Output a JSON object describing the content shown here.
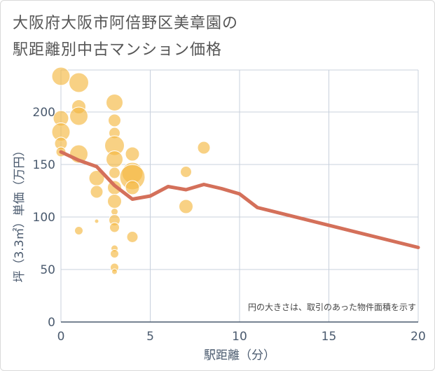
{
  "title": {
    "line1": "大阪府大阪市阿倍野区美章園の",
    "line2": "駅距離別中古マンション価格"
  },
  "note": "円の大きさは、取引のあった物件面積を示す",
  "colors": {
    "bubble": "#f5b942",
    "line": "#d4705a",
    "grid": "#c8d0dc",
    "axis": "#4a5a6e"
  },
  "chart_data": {
    "type": "scatter",
    "xlabel": "駅距離（分）",
    "ylabel": "坪（3.3㎡）単価（万円）",
    "xlim": [
      0,
      20
    ],
    "ylim": [
      0,
      240
    ],
    "x_ticks": [
      "0",
      "5",
      "10",
      "15",
      "20"
    ],
    "y_ticks": [
      "0",
      "50",
      "100",
      "150",
      "200"
    ],
    "grid": true,
    "points": [
      {
        "x": 0,
        "y": 234,
        "s": 13
      },
      {
        "x": 0,
        "y": 194,
        "s": 11
      },
      {
        "x": 0,
        "y": 181,
        "s": 13
      },
      {
        "x": 0,
        "y": 170,
        "s": 9
      },
      {
        "x": 0,
        "y": 162,
        "s": 7
      },
      {
        "x": 1,
        "y": 228,
        "s": 14
      },
      {
        "x": 1,
        "y": 205,
        "s": 10
      },
      {
        "x": 1,
        "y": 196,
        "s": 13
      },
      {
        "x": 1,
        "y": 160,
        "s": 13
      },
      {
        "x": 1,
        "y": 87,
        "s": 6
      },
      {
        "x": 2,
        "y": 137,
        "s": 11
      },
      {
        "x": 2,
        "y": 124,
        "s": 9
      },
      {
        "x": 2,
        "y": 96,
        "s": 3
      },
      {
        "x": 3,
        "y": 209,
        "s": 12
      },
      {
        "x": 3,
        "y": 192,
        "s": 9
      },
      {
        "x": 3,
        "y": 180,
        "s": 8
      },
      {
        "x": 3,
        "y": 168,
        "s": 14
      },
      {
        "x": 3,
        "y": 155,
        "s": 12
      },
      {
        "x": 3,
        "y": 142,
        "s": 8
      },
      {
        "x": 3,
        "y": 128,
        "s": 10
      },
      {
        "x": 3,
        "y": 115,
        "s": 10
      },
      {
        "x": 3,
        "y": 105,
        "s": 5
      },
      {
        "x": 3,
        "y": 97,
        "s": 8
      },
      {
        "x": 3,
        "y": 90,
        "s": 7
      },
      {
        "x": 3,
        "y": 70,
        "s": 5
      },
      {
        "x": 3,
        "y": 65,
        "s": 6
      },
      {
        "x": 3,
        "y": 52,
        "s": 6
      },
      {
        "x": 3,
        "y": 48,
        "s": 4
      },
      {
        "x": 4,
        "y": 160,
        "s": 10
      },
      {
        "x": 4,
        "y": 142,
        "s": 15
      },
      {
        "x": 4,
        "y": 138,
        "s": 18
      },
      {
        "x": 4,
        "y": 128,
        "s": 10
      },
      {
        "x": 4,
        "y": 81,
        "s": 8
      },
      {
        "x": 7,
        "y": 143,
        "s": 8
      },
      {
        "x": 7,
        "y": 110,
        "s": 10
      },
      {
        "x": 8,
        "y": 166,
        "s": 9
      }
    ],
    "trend_line": {
      "x": [
        0,
        1,
        2,
        3,
        4,
        5,
        6,
        7,
        8,
        9,
        10,
        11,
        20
      ],
      "y": [
        162,
        154,
        148,
        130,
        117,
        120,
        129,
        126,
        131,
        127,
        122,
        109,
        71
      ]
    }
  }
}
